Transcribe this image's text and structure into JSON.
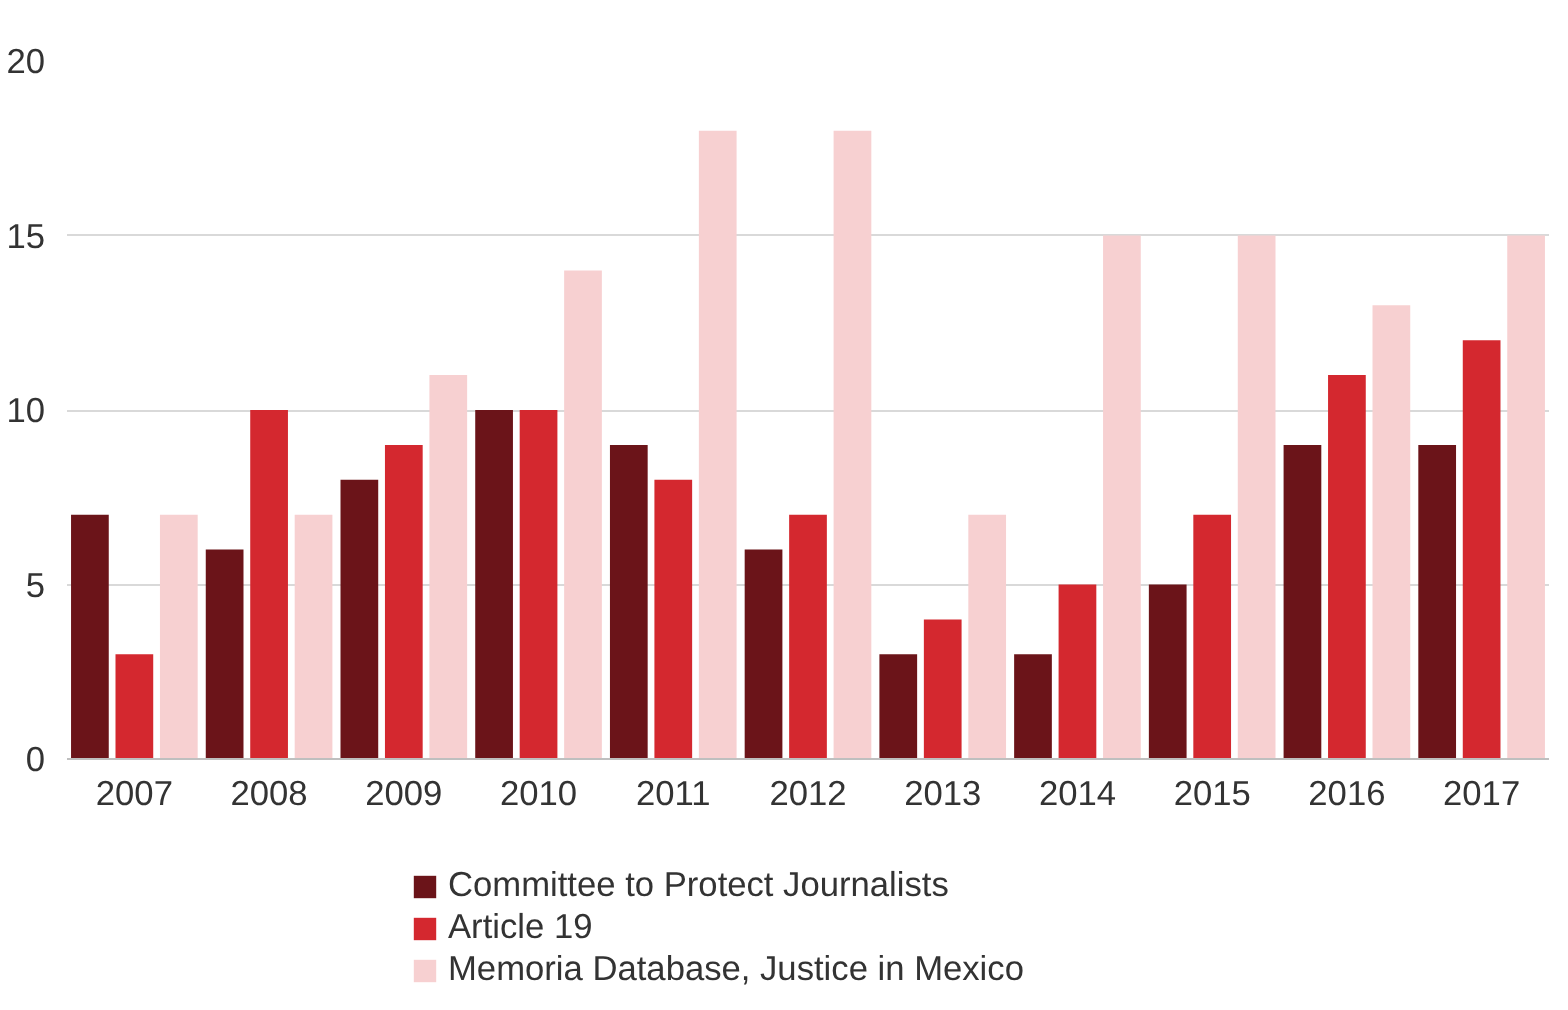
{
  "chart_data": {
    "type": "bar",
    "categories": [
      "2007",
      "2008",
      "2009",
      "2010",
      "2011",
      "2012",
      "2013",
      "2014",
      "2015",
      "2016",
      "2017"
    ],
    "series": [
      {
        "name": "Committee to Protect Journalists",
        "color": "#6b1419",
        "values": [
          7,
          6,
          8,
          10,
          9,
          6,
          3,
          3,
          5,
          9,
          9
        ]
      },
      {
        "name": "Article 19",
        "color": "#d4282f",
        "values": [
          3,
          10,
          9,
          10,
          8,
          7,
          4,
          5,
          7,
          11,
          12
        ]
      },
      {
        "name": "Memoria Database, Justice in Mexico",
        "color": "#f7d0d1",
        "values": [
          7,
          7,
          11,
          14,
          18,
          18,
          7,
          15,
          15,
          13,
          15
        ]
      }
    ],
    "ylim": [
      0,
      20
    ],
    "yticks": [
      0,
      5,
      10,
      15,
      20
    ],
    "grid": "y",
    "legend": "bottom"
  }
}
